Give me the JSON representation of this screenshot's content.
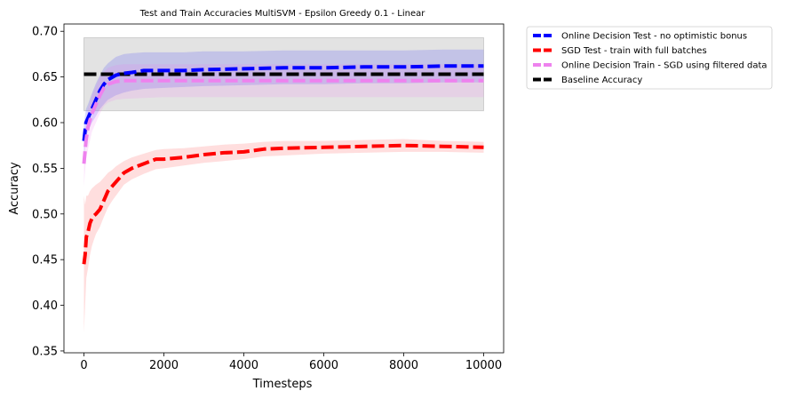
{
  "chart_data": {
    "type": "line",
    "title": "Test and Train Accuracies MultiSVM - Epsilon Greedy 0.1 - Linear",
    "xlabel": "Timesteps",
    "ylabel": "Accuracy",
    "xlim": [
      -500,
      10500
    ],
    "ylim": [
      0.348,
      0.708
    ],
    "xticks": [
      0,
      2000,
      4000,
      6000,
      8000,
      10000
    ],
    "xtick_labels": [
      "0",
      "2000",
      "4000",
      "6000",
      "8000",
      "10000"
    ],
    "yticks": [
      0.35,
      0.4,
      0.45,
      0.5,
      0.55,
      0.6,
      0.65,
      0.7
    ],
    "ytick_labels": [
      "0.35",
      "0.40",
      "0.45",
      "0.50",
      "0.55",
      "0.60",
      "0.65",
      "0.70"
    ],
    "grid": false,
    "legend_placement": "outside-right-top",
    "series": [
      {
        "name": "Online Decision Test - no optimistic bonus",
        "color": "#0000ff",
        "style": "dashed",
        "x": [
          0,
          50,
          100,
          200,
          300,
          400,
          500,
          600,
          800,
          1000,
          1200,
          1500,
          2000,
          2500,
          3000,
          4000,
          5000,
          6000,
          7000,
          8000,
          9000,
          10000
        ],
        "y": [
          0.58,
          0.6,
          0.605,
          0.615,
          0.625,
          0.635,
          0.642,
          0.647,
          0.652,
          0.654,
          0.655,
          0.657,
          0.657,
          0.657,
          0.658,
          0.659,
          0.66,
          0.66,
          0.661,
          0.661,
          0.662,
          0.662
        ],
        "band_low": [
          0.56,
          0.585,
          0.59,
          0.6,
          0.607,
          0.615,
          0.62,
          0.625,
          0.63,
          0.633,
          0.635,
          0.637,
          0.638,
          0.639,
          0.64,
          0.641,
          0.642,
          0.642,
          0.643,
          0.643,
          0.644,
          0.644
        ],
        "band_high": [
          0.6,
          0.615,
          0.62,
          0.632,
          0.643,
          0.652,
          0.66,
          0.665,
          0.672,
          0.675,
          0.676,
          0.677,
          0.677,
          0.677,
          0.678,
          0.678,
          0.679,
          0.679,
          0.679,
          0.679,
          0.68,
          0.68
        ]
      },
      {
        "name": "SGD Test - train with full batches",
        "color": "#ff0000",
        "style": "dashed",
        "x": [
          0,
          30,
          60,
          100,
          150,
          200,
          250,
          300,
          400,
          500,
          600,
          700,
          800,
          1000,
          1200,
          1500,
          1800,
          2000,
          2500,
          3000,
          3500,
          4000,
          4500,
          5000,
          6000,
          7000,
          8000,
          9000,
          10000
        ],
        "y": [
          0.445,
          0.455,
          0.475,
          0.48,
          0.49,
          0.495,
          0.498,
          0.5,
          0.505,
          0.515,
          0.525,
          0.53,
          0.535,
          0.545,
          0.55,
          0.555,
          0.56,
          0.56,
          0.562,
          0.565,
          0.567,
          0.568,
          0.571,
          0.572,
          0.573,
          0.574,
          0.575,
          0.574,
          0.573
        ],
        "band_low": [
          0.37,
          0.4,
          0.43,
          0.44,
          0.455,
          0.465,
          0.472,
          0.478,
          0.486,
          0.497,
          0.507,
          0.514,
          0.52,
          0.532,
          0.538,
          0.544,
          0.549,
          0.55,
          0.553,
          0.556,
          0.558,
          0.56,
          0.563,
          0.564,
          0.566,
          0.567,
          0.568,
          0.568,
          0.567
        ],
        "band_high": [
          0.52,
          0.51,
          0.52,
          0.52,
          0.525,
          0.528,
          0.53,
          0.532,
          0.535,
          0.54,
          0.545,
          0.548,
          0.552,
          0.558,
          0.562,
          0.566,
          0.57,
          0.571,
          0.572,
          0.574,
          0.576,
          0.577,
          0.579,
          0.58,
          0.58,
          0.581,
          0.582,
          0.58,
          0.579
        ]
      },
      {
        "name": "Online Decision Train - SGD using filtered data",
        "color": "#ee82ee",
        "style": "dashed",
        "x": [
          0,
          50,
          100,
          200,
          300,
          400,
          500,
          600,
          800,
          1000,
          1500,
          2000,
          3000,
          4000,
          5000,
          6000,
          7000,
          8000,
          9000,
          10000
        ],
        "y": [
          0.555,
          0.58,
          0.595,
          0.61,
          0.62,
          0.63,
          0.638,
          0.642,
          0.645,
          0.646,
          0.646,
          0.646,
          0.646,
          0.646,
          0.646,
          0.646,
          0.646,
          0.646,
          0.646,
          0.646
        ],
        "band_low": [
          0.53,
          0.56,
          0.57,
          0.59,
          0.6,
          0.61,
          0.618,
          0.622,
          0.625,
          0.626,
          0.627,
          0.628,
          0.628,
          0.628,
          0.628,
          0.628,
          0.628,
          0.628,
          0.628,
          0.628
        ],
        "band_high": [
          0.58,
          0.6,
          0.615,
          0.63,
          0.64,
          0.65,
          0.656,
          0.66,
          0.663,
          0.664,
          0.664,
          0.664,
          0.664,
          0.664,
          0.664,
          0.664,
          0.664,
          0.664,
          0.664,
          0.664
        ]
      },
      {
        "name": "Baseline Accuracy",
        "color": "#000000",
        "style": "dashed",
        "x": [
          0,
          10000
        ],
        "y": [
          0.653,
          0.653
        ],
        "band_low": [
          0.613,
          0.613
        ],
        "band_high": [
          0.693,
          0.693
        ]
      }
    ]
  }
}
